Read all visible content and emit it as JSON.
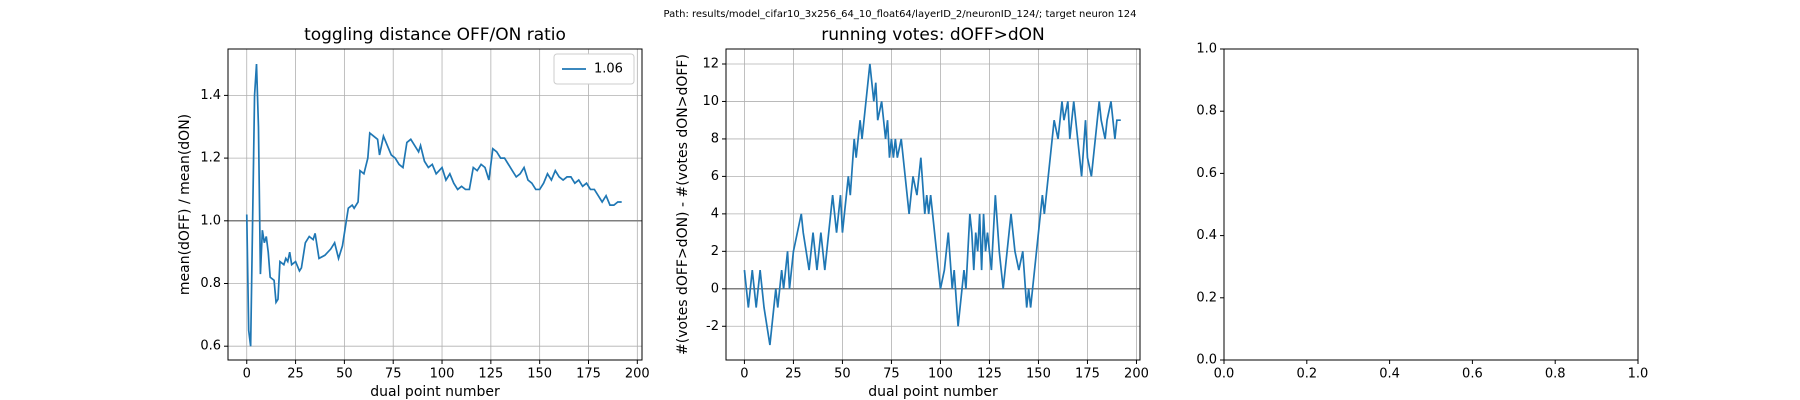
{
  "suptitle": "Path: results/model_cifar10_3x256_64_10_float64/layerID_2/neuronID_124/; target neuron 124",
  "chart_data": [
    {
      "type": "line",
      "title": "toggling distance OFF/ON ratio",
      "xlabel": "dual point number",
      "ylabel": "mean(dOFF) / mean(dON)",
      "grid": true,
      "legend": "upper right",
      "hline": 1,
      "xlim": [
        -9.6,
        202.4
      ],
      "ylim": [
        0.556,
        1.548
      ],
      "xticks": [
        0,
        25,
        50,
        75,
        100,
        125,
        150,
        175,
        200
      ],
      "yticks": [
        0.6,
        0.8,
        {
          "value": 1,
          "label": "1.0"
        },
        1.2,
        1.4
      ],
      "x": [
        0,
        1,
        2,
        3,
        4,
        5,
        6,
        7,
        8,
        9,
        10,
        11,
        12,
        14,
        15,
        16,
        17,
        19,
        20,
        21,
        22,
        23,
        25,
        27,
        28,
        30,
        32,
        34,
        35,
        37,
        40,
        43,
        45,
        47,
        49,
        51,
        52,
        54,
        55,
        57,
        58,
        60,
        62,
        63,
        65,
        67,
        68,
        70,
        72,
        74,
        76,
        78,
        80,
        82,
        84,
        86,
        88,
        89,
        91,
        93,
        95,
        97,
        100,
        102,
        104,
        106,
        108,
        110,
        112,
        114,
        116,
        118,
        120,
        122,
        124,
        126,
        128,
        130,
        132,
        134,
        136,
        138,
        140,
        142,
        144,
        146,
        148,
        150,
        152,
        154,
        156,
        158,
        160,
        162,
        164,
        166,
        168,
        170,
        172,
        174,
        176,
        178,
        180,
        182,
        184,
        186,
        188,
        190,
        192
      ],
      "series": [
        {
          "name": "1.06",
          "color": "#1f77b4",
          "values": [
            1.02,
            0.65,
            0.6,
            1.0,
            1.4,
            1.5,
            1.3,
            0.83,
            0.97,
            0.93,
            0.95,
            0.9,
            0.82,
            0.81,
            0.74,
            0.75,
            0.87,
            0.86,
            0.88,
            0.87,
            0.9,
            0.86,
            0.87,
            0.84,
            0.85,
            0.93,
            0.95,
            0.94,
            0.96,
            0.88,
            0.89,
            0.91,
            0.93,
            0.88,
            0.92,
            1.0,
            1.04,
            1.05,
            1.04,
            1.06,
            1.16,
            1.15,
            1.2,
            1.28,
            1.27,
            1.26,
            1.21,
            1.27,
            1.24,
            1.21,
            1.2,
            1.18,
            1.17,
            1.25,
            1.26,
            1.24,
            1.22,
            1.24,
            1.19,
            1.17,
            1.18,
            1.15,
            1.17,
            1.13,
            1.15,
            1.12,
            1.1,
            1.11,
            1.1,
            1.1,
            1.17,
            1.16,
            1.18,
            1.17,
            1.13,
            1.23,
            1.22,
            1.2,
            1.2,
            1.18,
            1.16,
            1.14,
            1.15,
            1.17,
            1.13,
            1.12,
            1.1,
            1.1,
            1.12,
            1.15,
            1.13,
            1.16,
            1.14,
            1.13,
            1.14,
            1.14,
            1.12,
            1.13,
            1.11,
            1.12,
            1.1,
            1.1,
            1.08,
            1.06,
            1.08,
            1.05,
            1.05,
            1.06,
            1.06
          ]
        }
      ]
    },
    {
      "type": "line",
      "title": "running votes: dOFF>dON",
      "xlabel": "dual point number",
      "ylabel": "#(votes dOFF>dON) - #(votes dON>dOFF)",
      "grid": true,
      "hline": 0,
      "xlim": [
        -9.4,
        201.8
      ],
      "ylim": [
        -3.8,
        12.8
      ],
      "xticks": [
        0,
        25,
        50,
        75,
        100,
        125,
        150,
        175,
        200
      ],
      "yticks": [
        -2,
        0,
        2,
        4,
        6,
        8,
        10,
        12
      ],
      "x": [
        0,
        2,
        4,
        6,
        8,
        10,
        13,
        16,
        17,
        19,
        20,
        22,
        23,
        25,
        29,
        30,
        33,
        35,
        37,
        39,
        41,
        43,
        45,
        47,
        49,
        50,
        53,
        54,
        56,
        57,
        59,
        60,
        62,
        64,
        66,
        67,
        68,
        70,
        72,
        73,
        74,
        75,
        76,
        77,
        78,
        80,
        84,
        86,
        88,
        90,
        92,
        93,
        94,
        95,
        97,
        99,
        100,
        102,
        104,
        106,
        107,
        109,
        111,
        112,
        113,
        115,
        116,
        117,
        118,
        119,
        120,
        121,
        122,
        123,
        124,
        126,
        128,
        130,
        132,
        134,
        136,
        138,
        140,
        142,
        144,
        145,
        146,
        148,
        150,
        152,
        153,
        154,
        156,
        158,
        160,
        162,
        163,
        165,
        166,
        168,
        170,
        172,
        174,
        175,
        177,
        179,
        181,
        182,
        184,
        185,
        187,
        189,
        190,
        192
      ],
      "series": [
        {
          "color": "#1f77b4",
          "values": [
            1,
            -1,
            1,
            -1,
            1,
            -1,
            -3,
            0,
            -1,
            1,
            0,
            2,
            0,
            2,
            4,
            3,
            1,
            3,
            1,
            3,
            1,
            3,
            5,
            3,
            5,
            3,
            6,
            5,
            8,
            7,
            9,
            8,
            10,
            12,
            10,
            11,
            9,
            10,
            8,
            9,
            7,
            8,
            7,
            8,
            7,
            8,
            4,
            6,
            5,
            7,
            4,
            5,
            4,
            5,
            3,
            1,
            0,
            1,
            3,
            0,
            1,
            -2,
            0,
            1,
            0,
            4,
            3,
            1,
            3,
            2,
            4,
            1,
            4,
            2,
            3,
            1,
            5,
            2,
            0,
            2,
            4,
            2,
            1,
            2,
            -1,
            0,
            -1,
            1,
            3,
            5,
            4,
            5,
            7,
            9,
            8,
            10,
            9,
            10,
            8,
            10,
            8,
            6,
            9,
            7,
            6,
            8,
            10,
            9,
            8,
            9,
            10,
            8,
            9,
            9
          ]
        }
      ]
    },
    {
      "type": "empty",
      "xlim": [
        0,
        1
      ],
      "ylim": [
        0,
        1
      ],
      "xticks": [
        {
          "value": 0,
          "label": "0.0"
        },
        0.2,
        0.4,
        0.6,
        0.8,
        {
          "value": 1,
          "label": "1.0"
        }
      ],
      "yticks": [
        {
          "value": 0,
          "label": "0.0"
        },
        0.2,
        0.4,
        0.6,
        0.8,
        {
          "value": 1,
          "label": "1.0"
        }
      ]
    }
  ]
}
